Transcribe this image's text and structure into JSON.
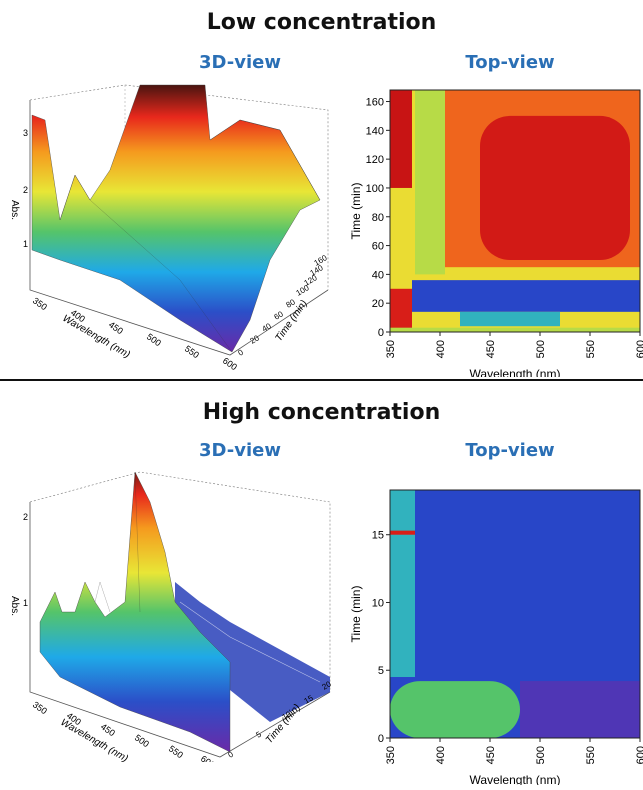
{
  "sections": [
    {
      "title": "Low concentration",
      "view3d": "3D-view",
      "viewtop": "Top-view"
    },
    {
      "title": "High concentration",
      "view3d": "3D-view",
      "viewtop": "Top-view"
    }
  ],
  "chart_data": [
    {
      "type": "surface-3d",
      "section": "Low concentration",
      "title": "3D-view",
      "zlabel": "Abs.",
      "xlabel": "Wavelength (nm)",
      "ylabel": "Time (min)",
      "x_ticks": [
        "350",
        "400",
        "450",
        "500",
        "550",
        "600"
      ],
      "y_ticks": [
        "0",
        "20",
        "40",
        "60",
        "80",
        "100",
        "120",
        "140",
        "160"
      ],
      "z_ticks": [
        "1",
        "2",
        "3"
      ],
      "xlim": [
        350,
        600
      ],
      "ylim": [
        0,
        165
      ],
      "zlim": [
        0,
        3.5
      ]
    },
    {
      "type": "heatmap",
      "section": "Low concentration",
      "title": "Top-view",
      "xlabel": "Wavelength (nm)",
      "ylabel": "Time (min)",
      "x_ticks": [
        "350",
        "400",
        "450",
        "500",
        "550",
        "600"
      ],
      "y_ticks": [
        "0",
        "20",
        "40",
        "60",
        "80",
        "100",
        "120",
        "140",
        "160"
      ],
      "xlim": [
        350,
        600
      ],
      "ylim": [
        0,
        168
      ],
      "regions": [
        {
          "x": [
            350,
            600
          ],
          "y": [
            0,
            168
          ],
          "level": 0.62
        },
        {
          "x": [
            395,
            600
          ],
          "y": [
            45,
            168
          ],
          "level": 0.82
        },
        {
          "x": [
            440,
            590
          ],
          "y": [
            50,
            150
          ],
          "level": 0.97
        },
        {
          "x": [
            375,
            405
          ],
          "y": [
            40,
            168
          ],
          "level": 0.55
        },
        {
          "x": [
            350,
            372
          ],
          "y": [
            100,
            168
          ],
          "level": 1.0
        },
        {
          "x": [
            372,
            600
          ],
          "y": [
            14,
            36
          ],
          "level": 0.12
        },
        {
          "x": [
            420,
            520
          ],
          "y": [
            4,
            14
          ],
          "level": 0.35
        },
        {
          "x": [
            350,
            372
          ],
          "y": [
            0,
            30
          ],
          "level": 0.95
        },
        {
          "x": [
            350,
            600
          ],
          "y": [
            0,
            3
          ],
          "level": 0.55
        }
      ]
    },
    {
      "type": "surface-3d",
      "section": "High concentration",
      "title": "3D-view",
      "zlabel": "Abs.",
      "xlabel": "Wavelength (nm)",
      "ylabel": "Time (min)",
      "x_ticks": [
        "350",
        "400",
        "450",
        "500",
        "550",
        "600"
      ],
      "y_ticks": [
        "0",
        "5",
        "10",
        "15",
        "20"
      ],
      "z_ticks": [
        "1",
        "2"
      ],
      "xlim": [
        350,
        600
      ],
      "ylim": [
        0,
        20
      ],
      "zlim": [
        0,
        2.2
      ]
    },
    {
      "type": "heatmap",
      "section": "High concentration",
      "title": "Top-view",
      "xlabel": "Wavelength (nm)",
      "ylabel": "Time (min)",
      "x_ticks": [
        "350",
        "400",
        "450",
        "500",
        "550",
        "600"
      ],
      "y_ticks": [
        "0",
        "5",
        "10",
        "15"
      ],
      "xlim": [
        350,
        600
      ],
      "ylim": [
        0,
        18.3
      ],
      "regions": [
        {
          "x": [
            350,
            600
          ],
          "y": [
            0,
            18.3
          ],
          "level": 0.12
        },
        {
          "x": [
            350,
            375
          ],
          "y": [
            4.5,
            18.3
          ],
          "level": 0.35
        },
        {
          "x": [
            350,
            480
          ],
          "y": [
            0,
            4.2
          ],
          "level": 0.45
        },
        {
          "x": [
            480,
            600
          ],
          "y": [
            0,
            4.2
          ],
          "level": 0.05
        },
        {
          "x": [
            350,
            375
          ],
          "y": [
            15.0,
            15.3
          ],
          "level": 0.95
        }
      ]
    }
  ]
}
